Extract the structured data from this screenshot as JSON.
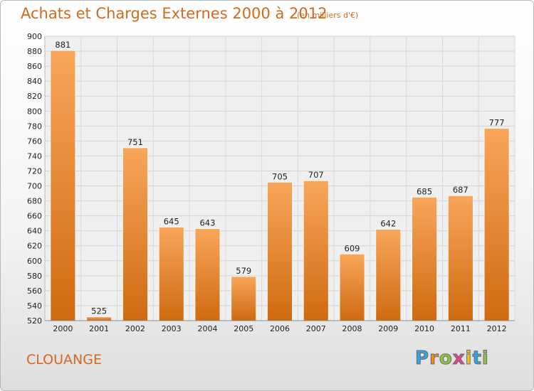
{
  "header": {
    "title": "Achats et Charges Externes 2000 à 2012",
    "subtitle": "(en milliers d'€)"
  },
  "footer": {
    "commune": "CLOUANGE",
    "logo": {
      "letters": [
        "P",
        "r",
        "o",
        "x",
        "i",
        "t",
        "i"
      ],
      "colors": [
        "#3aa0dc",
        "#f08a1c",
        "#8cc63f",
        "#e84393",
        "#f6c21c",
        "#3aa0dc",
        "#8cc63f"
      ]
    }
  },
  "chart_data": {
    "type": "bar",
    "categories": [
      "2000",
      "2001",
      "2002",
      "2003",
      "2004",
      "2005",
      "2006",
      "2007",
      "2008",
      "2009",
      "2010",
      "2011",
      "2012"
    ],
    "values": [
      881,
      525,
      751,
      645,
      643,
      579,
      705,
      707,
      609,
      642,
      685,
      687,
      777
    ],
    "title": "Achats et Charges Externes 2000 à 2012",
    "ylim": [
      520,
      900
    ],
    "yticks": [
      "520",
      "540",
      "560",
      "580",
      "600",
      "620",
      "640",
      "660",
      "680",
      "700",
      "720",
      "740",
      "760",
      "780",
      "800",
      "820",
      "840",
      "860",
      "880",
      "900"
    ],
    "grid": true,
    "bar_color_top": "#f8a65a",
    "bar_color_bottom": "#d06a10"
  }
}
